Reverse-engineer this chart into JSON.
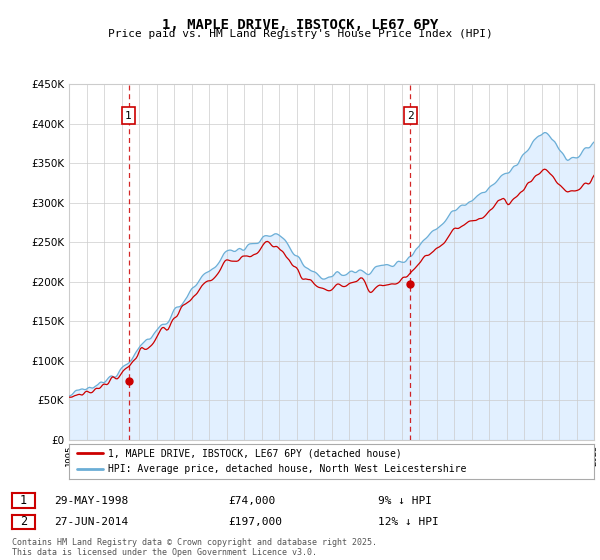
{
  "title": "1, MAPLE DRIVE, IBSTOCK, LE67 6PY",
  "subtitle": "Price paid vs. HM Land Registry's House Price Index (HPI)",
  "legend_entry1": "1, MAPLE DRIVE, IBSTOCK, LE67 6PY (detached house)",
  "legend_entry2": "HPI: Average price, detached house, North West Leicestershire",
  "sale1_date": "29-MAY-1998",
  "sale1_price": 74000,
  "sale1_note": "9% ↓ HPI",
  "sale2_date": "27-JUN-2014",
  "sale2_price": 197000,
  "sale2_note": "12% ↓ HPI",
  "footnote": "Contains HM Land Registry data © Crown copyright and database right 2025.\nThis data is licensed under the Open Government Licence v3.0.",
  "hpi_color": "#6baed6",
  "hpi_fill_color": "#ddeeff",
  "price_color": "#cc0000",
  "dashed_color": "#cc0000",
  "ylim_min": 0,
  "ylim_max": 450000,
  "xstart": 1995,
  "xend": 2025,
  "sale1_x": 1998.4,
  "sale2_x": 2014.5
}
